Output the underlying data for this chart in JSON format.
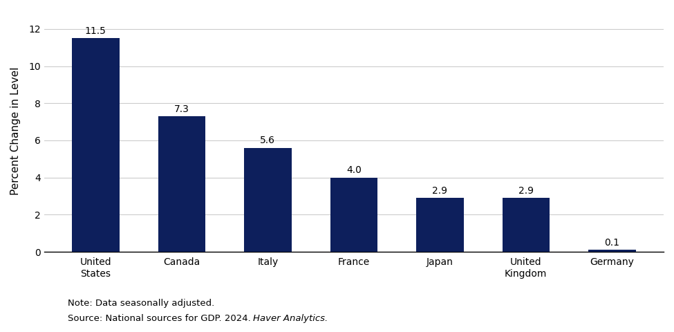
{
  "categories": [
    "United\nStates",
    "Canada",
    "Italy",
    "France",
    "Japan",
    "United\nKingdom",
    "Germany"
  ],
  "values": [
    11.5,
    7.3,
    5.6,
    4.0,
    2.9,
    2.9,
    0.1
  ],
  "bar_color": "#0d1f5c",
  "ylabel": "Percent Change in Level",
  "ylim": [
    0,
    13
  ],
  "yticks": [
    0,
    2,
    4,
    6,
    8,
    10,
    12
  ],
  "bar_width": 0.55,
  "note_line1": "Note: Data seasonally adjusted.",
  "note_line2": "Source: National sources for GDP. 2024. ",
  "note_italic": "Haver Analytics",
  "note_end": ".",
  "label_fontsize": 10,
  "axis_fontsize": 11,
  "tick_fontsize": 10,
  "note_fontsize": 9.5,
  "background_color": "#ffffff",
  "grid_color": "#cccccc"
}
